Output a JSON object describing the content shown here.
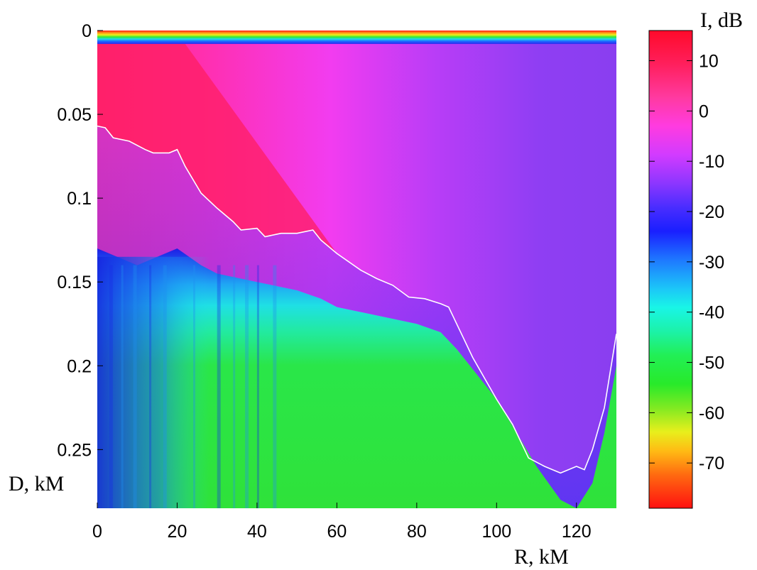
{
  "chart_data": [
    {
      "type": "heatmap",
      "title": "",
      "xlabel": "R, kM",
      "ylabel": "D, kM",
      "xlim": [
        0,
        130
      ],
      "ylim": [
        0.285,
        0
      ],
      "xticks": [
        "0",
        "20",
        "40",
        "60",
        "80",
        "100",
        "120"
      ],
      "yticks": [
        "0",
        "0.05",
        "0.1",
        "0.15",
        "0.2",
        "0.25"
      ],
      "colorbar": {
        "label": "I, dB",
        "range": [
          -79,
          16
        ],
        "ticks": [
          "10",
          "0",
          "-10",
          "-20",
          "-30",
          "-40",
          "-50",
          "-60",
          "-70"
        ],
        "colormap": "hsv-like (red low → yellow → green → cyan → blue → magenta → red high)"
      },
      "boundary_line": {
        "color": "#ffffff",
        "x": [
          0,
          2,
          4,
          8,
          12,
          14,
          18,
          20,
          22,
          26,
          30,
          34,
          36,
          40,
          42,
          46,
          50,
          54,
          56,
          60,
          66,
          70,
          74,
          78,
          82,
          86,
          88,
          94,
          100,
          104,
          108,
          112,
          116,
          120,
          122,
          124,
          127,
          130
        ],
        "y": [
          0.057,
          0.058,
          0.064,
          0.066,
          0.071,
          0.073,
          0.073,
          0.071,
          0.081,
          0.097,
          0.106,
          0.114,
          0.119,
          0.118,
          0.123,
          0.121,
          0.121,
          0.119,
          0.125,
          0.133,
          0.143,
          0.148,
          0.152,
          0.159,
          0.16,
          0.163,
          0.165,
          0.195,
          0.22,
          0.235,
          0.255,
          0.26,
          0.264,
          0.26,
          0.262,
          0.25,
          0.225,
          0.181
        ]
      },
      "layers": {
        "surface_depth": 0.008,
        "red_zone_end_x": 22,
        "bottom_profile": {
          "x": [
            0,
            10,
            20,
            26,
            30,
            40,
            50,
            56,
            60,
            70,
            80,
            86,
            90,
            100,
            110,
            116,
            120,
            124,
            127,
            130
          ],
          "y": [
            0.13,
            0.14,
            0.13,
            0.14,
            0.145,
            0.15,
            0.155,
            0.16,
            0.165,
            0.17,
            0.175,
            0.18,
            0.19,
            0.22,
            0.26,
            0.28,
            0.285,
            0.27,
            0.24,
            0.2
          ]
        }
      }
    }
  ]
}
